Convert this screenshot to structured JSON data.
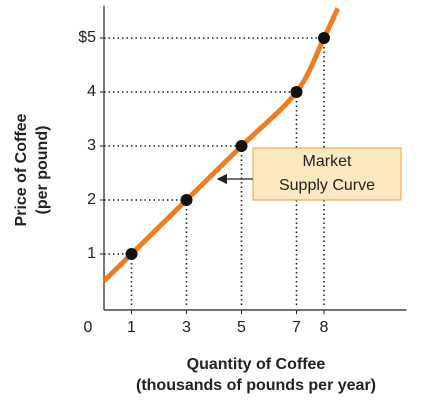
{
  "chart_data": {
    "type": "line",
    "x": [
      1,
      3,
      5,
      7,
      8
    ],
    "values": [
      1,
      2,
      3,
      4,
      5
    ],
    "curve": {
      "x": [
        0,
        1,
        3,
        5,
        7,
        8,
        8.5
      ],
      "y": [
        0.5,
        1,
        2,
        3,
        4,
        5,
        5.55
      ],
      "color": "#f07c22"
    },
    "point_color": "#111111",
    "xlim": [
      0,
      11
    ],
    "ylim": [
      0,
      5.6
    ],
    "xticks": [
      0,
      1,
      3,
      5,
      7,
      8
    ],
    "yticks": [
      1,
      2,
      3,
      4,
      {
        "value": 5,
        "label": "$5"
      }
    ],
    "x_label": [
      "Quantity of Coffee",
      "(thousands of pounds per year)"
    ],
    "y_label": [
      "Price of Coffee",
      "(per pound)"
    ],
    "annotation": [
      "Market",
      "Supply Curve"
    ]
  }
}
